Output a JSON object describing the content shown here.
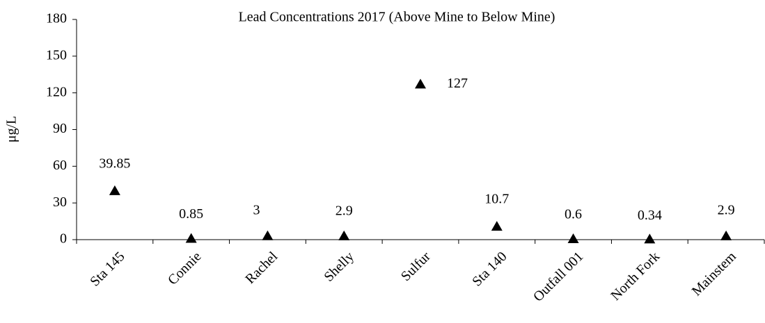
{
  "chart_data": {
    "type": "scatter",
    "title": "Lead Concentrations 2017  (Above Mine to Below Mine)",
    "y_label": "μg/L",
    "categories": [
      "Sta 145",
      "Connie",
      "Rachel",
      "Shelly",
      "Sulfur",
      "Sta 140",
      "Outfall 001",
      "North Fork",
      "Mainstem"
    ],
    "values": [
      39.85,
      0.85,
      3,
      2.9,
      127,
      10.7,
      0.6,
      0.34,
      2.9
    ],
    "color": "#000000",
    "ylim": [
      0,
      180
    ],
    "yticks": [
      0,
      30,
      60,
      90,
      120,
      150,
      180
    ],
    "grid": false
  }
}
